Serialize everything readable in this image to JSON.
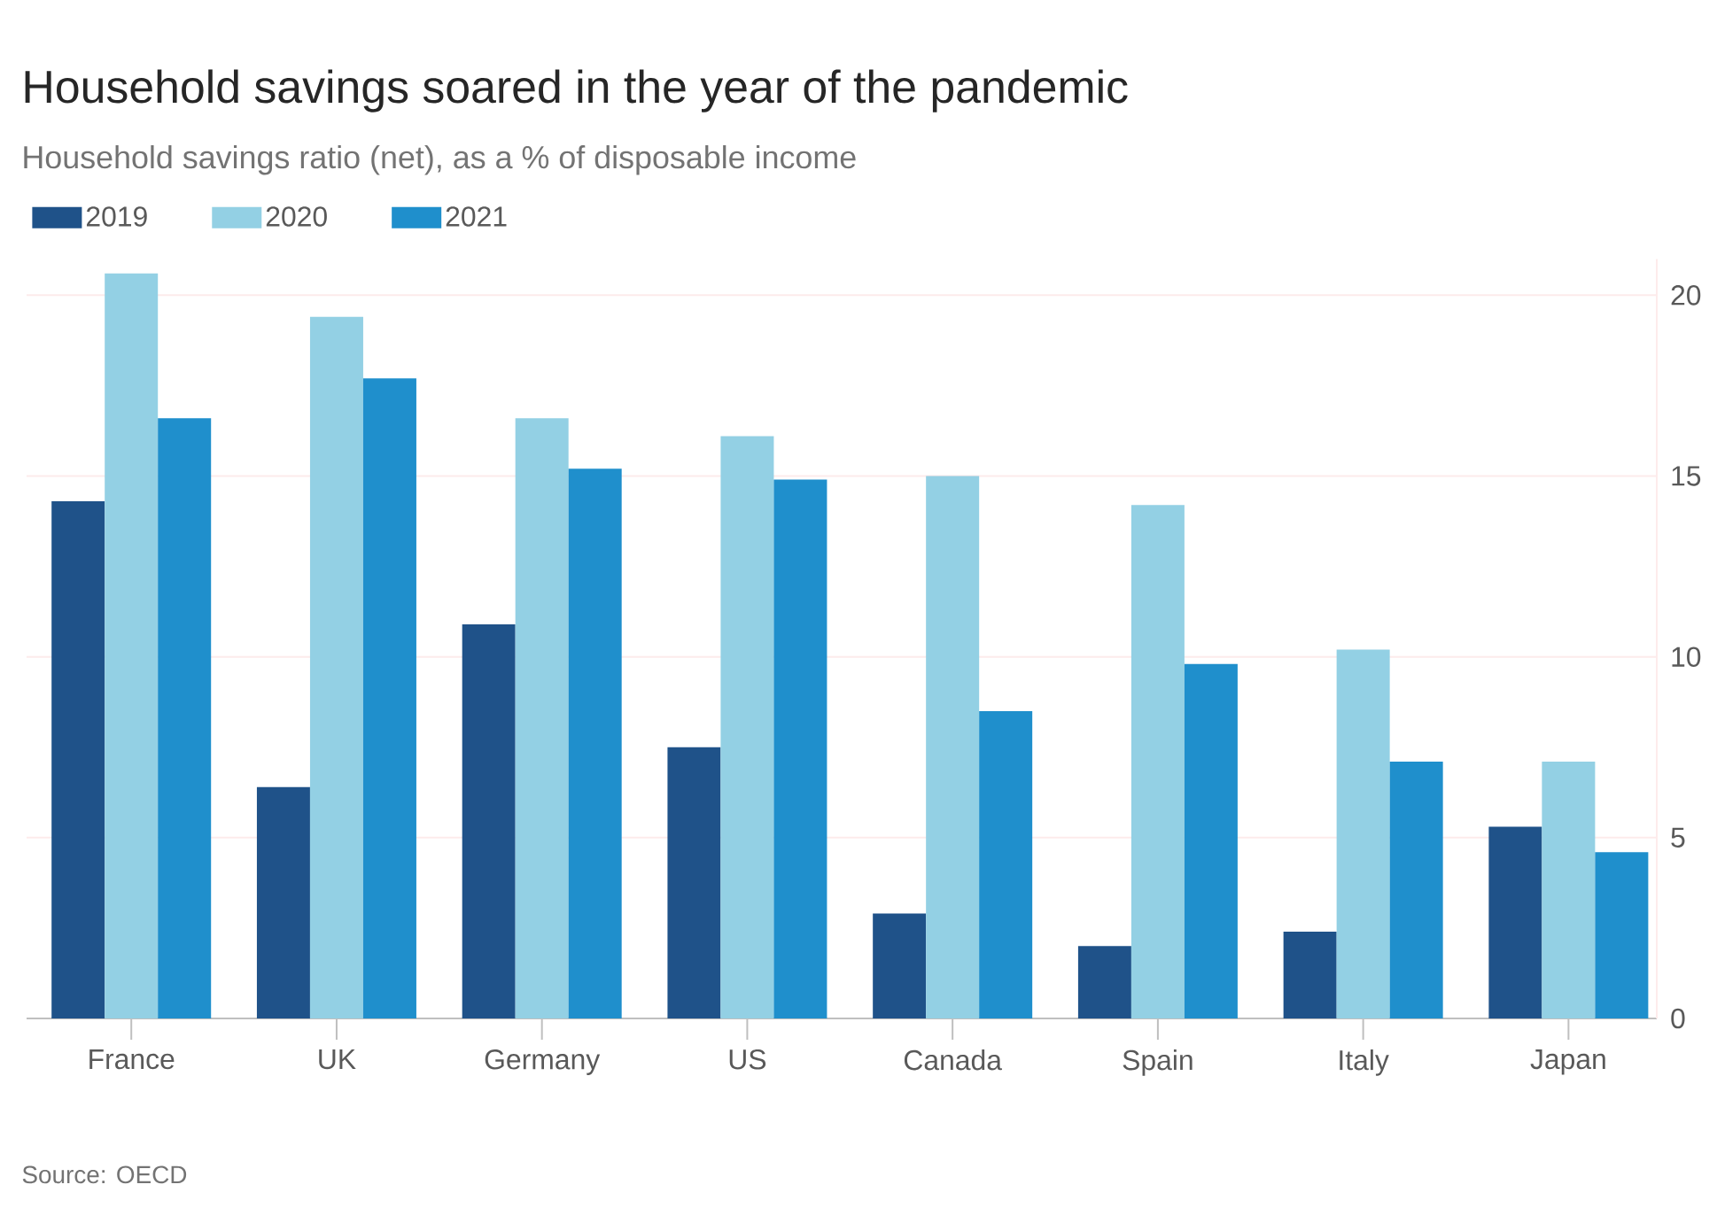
{
  "chart_data": {
    "type": "bar",
    "title": "Household savings soared in the year of the pandemic",
    "subtitle": "Household savings ratio (net), as a % of disposable income",
    "categories": [
      "France",
      "UK",
      "Germany",
      "US",
      "Canada",
      "Spain",
      "Italy",
      "Japan"
    ],
    "series": [
      {
        "name": "2019",
        "color": "#1f5289",
        "values": [
          14.3,
          6.4,
          10.9,
          7.5,
          2.9,
          2.0,
          2.4,
          5.3
        ]
      },
      {
        "name": "2020",
        "color": "#93d0e4",
        "values": [
          20.6,
          19.4,
          16.6,
          16.1,
          15.0,
          14.2,
          10.2,
          7.1
        ]
      },
      {
        "name": "2021",
        "color": "#1f8fcc",
        "values": [
          16.6,
          17.7,
          15.2,
          14.9,
          8.5,
          9.8,
          7.1,
          4.6
        ]
      }
    ],
    "ylim": [
      0,
      21
    ],
    "yticks": [
      0,
      5,
      10,
      15,
      20
    ],
    "grid": "y",
    "legend": "top left",
    "annotations": [
      "Source: OECD"
    ]
  }
}
